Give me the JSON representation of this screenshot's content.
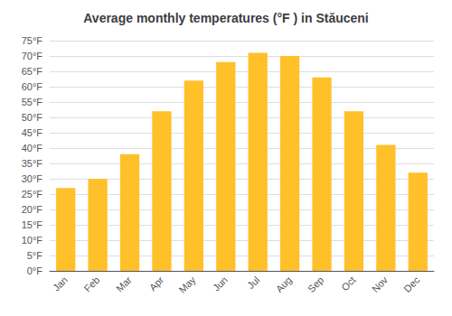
{
  "chart_data": {
    "type": "bar",
    "title": "Average monthly temperatures (°F ) in Stăuceni",
    "categories": [
      "Jan",
      "Feb",
      "Mar",
      "Apr",
      "May",
      "Jun",
      "Jul",
      "Aug",
      "Sep",
      "Oct",
      "Nov",
      "Dec"
    ],
    "values": [
      27,
      30,
      38,
      52,
      62,
      68,
      71,
      70,
      63,
      52,
      41,
      32
    ],
    "color": "#FFC02A",
    "ylim": [
      0,
      75
    ],
    "yticks": [
      {
        "value": 0,
        "label": "0°F"
      },
      {
        "value": 5,
        "label": "5°F"
      },
      {
        "value": 10,
        "label": "10°F"
      },
      {
        "value": 15,
        "label": "15°F"
      },
      {
        "value": 20,
        "label": "20°F"
      },
      {
        "value": 25,
        "label": "25°F"
      },
      {
        "value": 30,
        "label": "30°F"
      },
      {
        "value": 35,
        "label": "35°F"
      },
      {
        "value": 40,
        "label": "40°F"
      },
      {
        "value": 45,
        "label": "45°F"
      },
      {
        "value": 50,
        "label": "50°F"
      },
      {
        "value": 55,
        "label": "55°F"
      },
      {
        "value": 60,
        "label": "60°F"
      },
      {
        "value": 65,
        "label": "65°F"
      },
      {
        "value": 70,
        "label": "70°F"
      },
      {
        "value": 75,
        "label": "75°F"
      }
    ],
    "grid": true
  }
}
